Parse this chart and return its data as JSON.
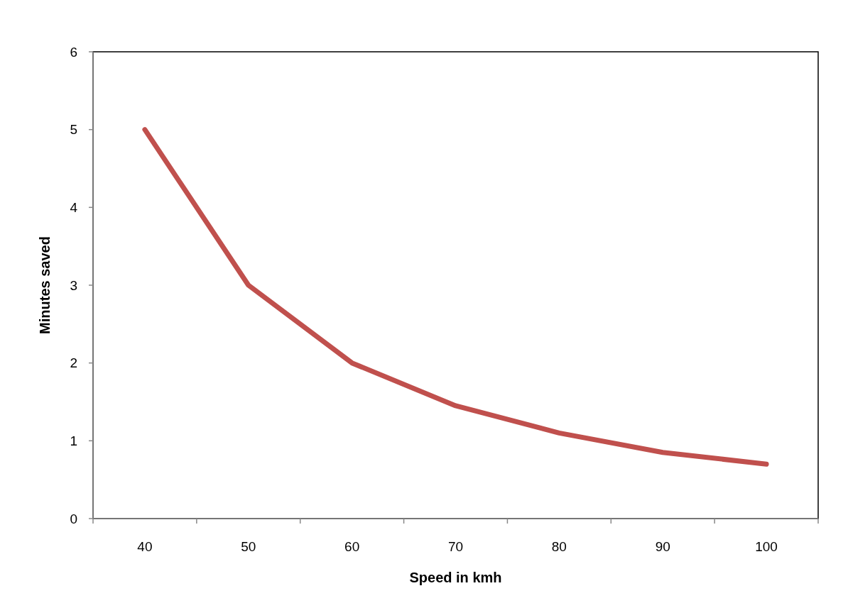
{
  "chart_data": {
    "type": "line",
    "xlabel": "Speed in kmh",
    "ylabel": "Minutes saved",
    "categories": [
      "40",
      "50",
      "60",
      "70",
      "80",
      "90",
      "100"
    ],
    "series": [
      {
        "color": "#c0504d",
        "values": [
          5,
          3,
          2,
          1.45,
          1.1,
          0.85,
          0.7
        ]
      }
    ],
    "ylim": [
      0,
      6
    ],
    "yticks": [
      0,
      1,
      2,
      3,
      4,
      5,
      6
    ],
    "grid": false,
    "marker": "none",
    "line_style": "solid"
  }
}
